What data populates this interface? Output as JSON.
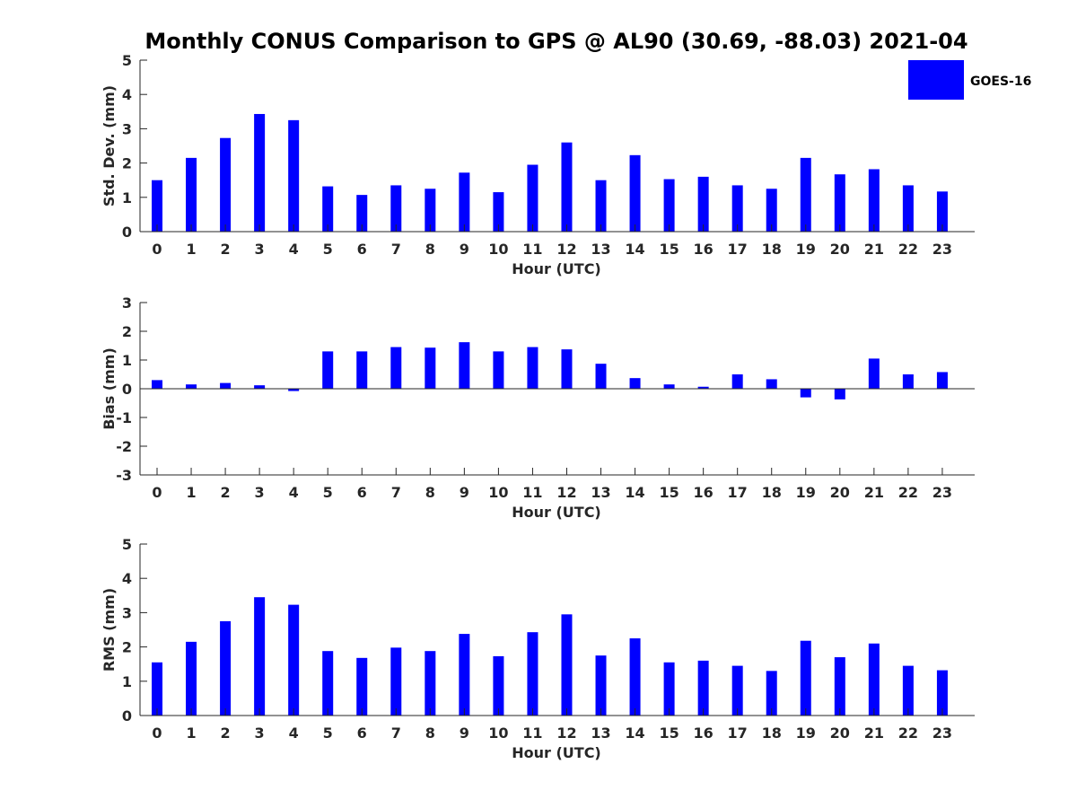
{
  "title": "Monthly CONUS Comparison to GPS @ AL90 (30.69, -88.03) 2021-04",
  "legend": {
    "label": "GOES-16",
    "color": "#0000ff",
    "placement": "top-right"
  },
  "chart_data": [
    {
      "type": "bar",
      "xlabel": "Hour (UTC)",
      "ylabel": "Std. Dev. (mm)",
      "ylim": [
        0,
        5
      ],
      "yticks": [
        "0",
        "1",
        "2",
        "3",
        "4",
        "5"
      ],
      "categories": [
        "0",
        "1",
        "2",
        "3",
        "4",
        "5",
        "6",
        "7",
        "8",
        "9",
        "10",
        "11",
        "12",
        "13",
        "14",
        "15",
        "16",
        "17",
        "18",
        "19",
        "20",
        "21",
        "22",
        "23"
      ],
      "series": [
        {
          "name": "GOES-16",
          "color": "#0000ff",
          "values": [
            1.5,
            2.15,
            2.73,
            3.43,
            3.25,
            1.32,
            1.07,
            1.35,
            1.25,
            1.72,
            1.15,
            1.95,
            2.6,
            1.5,
            2.23,
            1.53,
            1.6,
            1.35,
            1.25,
            2.15,
            1.67,
            1.82,
            1.35,
            1.17
          ]
        }
      ]
    },
    {
      "type": "bar",
      "xlabel": "Hour (UTC)",
      "ylabel": "Bias (mm)",
      "ylim": [
        -3,
        3
      ],
      "yticks": [
        "-3",
        "-2",
        "-1",
        "0",
        "1",
        "2",
        "3"
      ],
      "categories": [
        "0",
        "1",
        "2",
        "3",
        "4",
        "5",
        "6",
        "7",
        "8",
        "9",
        "10",
        "11",
        "12",
        "13",
        "14",
        "15",
        "16",
        "17",
        "18",
        "19",
        "20",
        "21",
        "22",
        "23"
      ],
      "series": [
        {
          "name": "GOES-16",
          "color": "#0000ff",
          "values": [
            0.3,
            0.15,
            0.2,
            0.12,
            -0.08,
            1.3,
            1.3,
            1.45,
            1.43,
            1.62,
            1.3,
            1.45,
            1.37,
            0.87,
            0.37,
            0.15,
            0.07,
            0.5,
            0.33,
            -0.3,
            -0.37,
            1.05,
            0.5,
            0.58
          ]
        }
      ]
    },
    {
      "type": "bar",
      "xlabel": "Hour (UTC)",
      "ylabel": "RMS (mm)",
      "ylim": [
        0,
        5
      ],
      "yticks": [
        "0",
        "1",
        "2",
        "3",
        "4",
        "5"
      ],
      "categories": [
        "0",
        "1",
        "2",
        "3",
        "4",
        "5",
        "6",
        "7",
        "8",
        "9",
        "10",
        "11",
        "12",
        "13",
        "14",
        "15",
        "16",
        "17",
        "18",
        "19",
        "20",
        "21",
        "22",
        "23"
      ],
      "series": [
        {
          "name": "GOES-16",
          "color": "#0000ff",
          "values": [
            1.55,
            2.15,
            2.75,
            3.45,
            3.23,
            1.88,
            1.68,
            1.98,
            1.88,
            2.38,
            1.73,
            2.43,
            2.95,
            1.75,
            2.25,
            1.55,
            1.6,
            1.45,
            1.3,
            2.18,
            1.7,
            2.1,
            1.45,
            1.32
          ]
        }
      ]
    }
  ]
}
